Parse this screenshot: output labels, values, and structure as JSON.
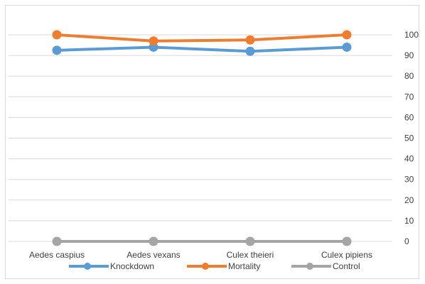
{
  "chart_data": {
    "type": "line",
    "categories": [
      "Aedes caspius",
      "Aedes vexans",
      "Culex theieri",
      "Culex pipiens"
    ],
    "series": [
      {
        "name": "Knockdown",
        "color": "#5b9bd5",
        "values": [
          92.5,
          94,
          92,
          94
        ]
      },
      {
        "name": "Mortality",
        "color": "#ed7d31",
        "values": [
          100,
          97,
          97.5,
          100
        ]
      },
      {
        "name": "Control",
        "color": "#a5a5a5",
        "values": [
          0,
          0,
          0,
          0
        ]
      }
    ],
    "y_axis": {
      "position": "right",
      "min": 0,
      "max": 100,
      "step": 10,
      "ticks": [
        "0",
        "10",
        "20",
        "30",
        "40",
        "50",
        "60",
        "70",
        "80",
        "90",
        "100"
      ]
    },
    "grid": true,
    "legend": "bottom",
    "title": "",
    "xlabel": "",
    "ylabel": ""
  }
}
